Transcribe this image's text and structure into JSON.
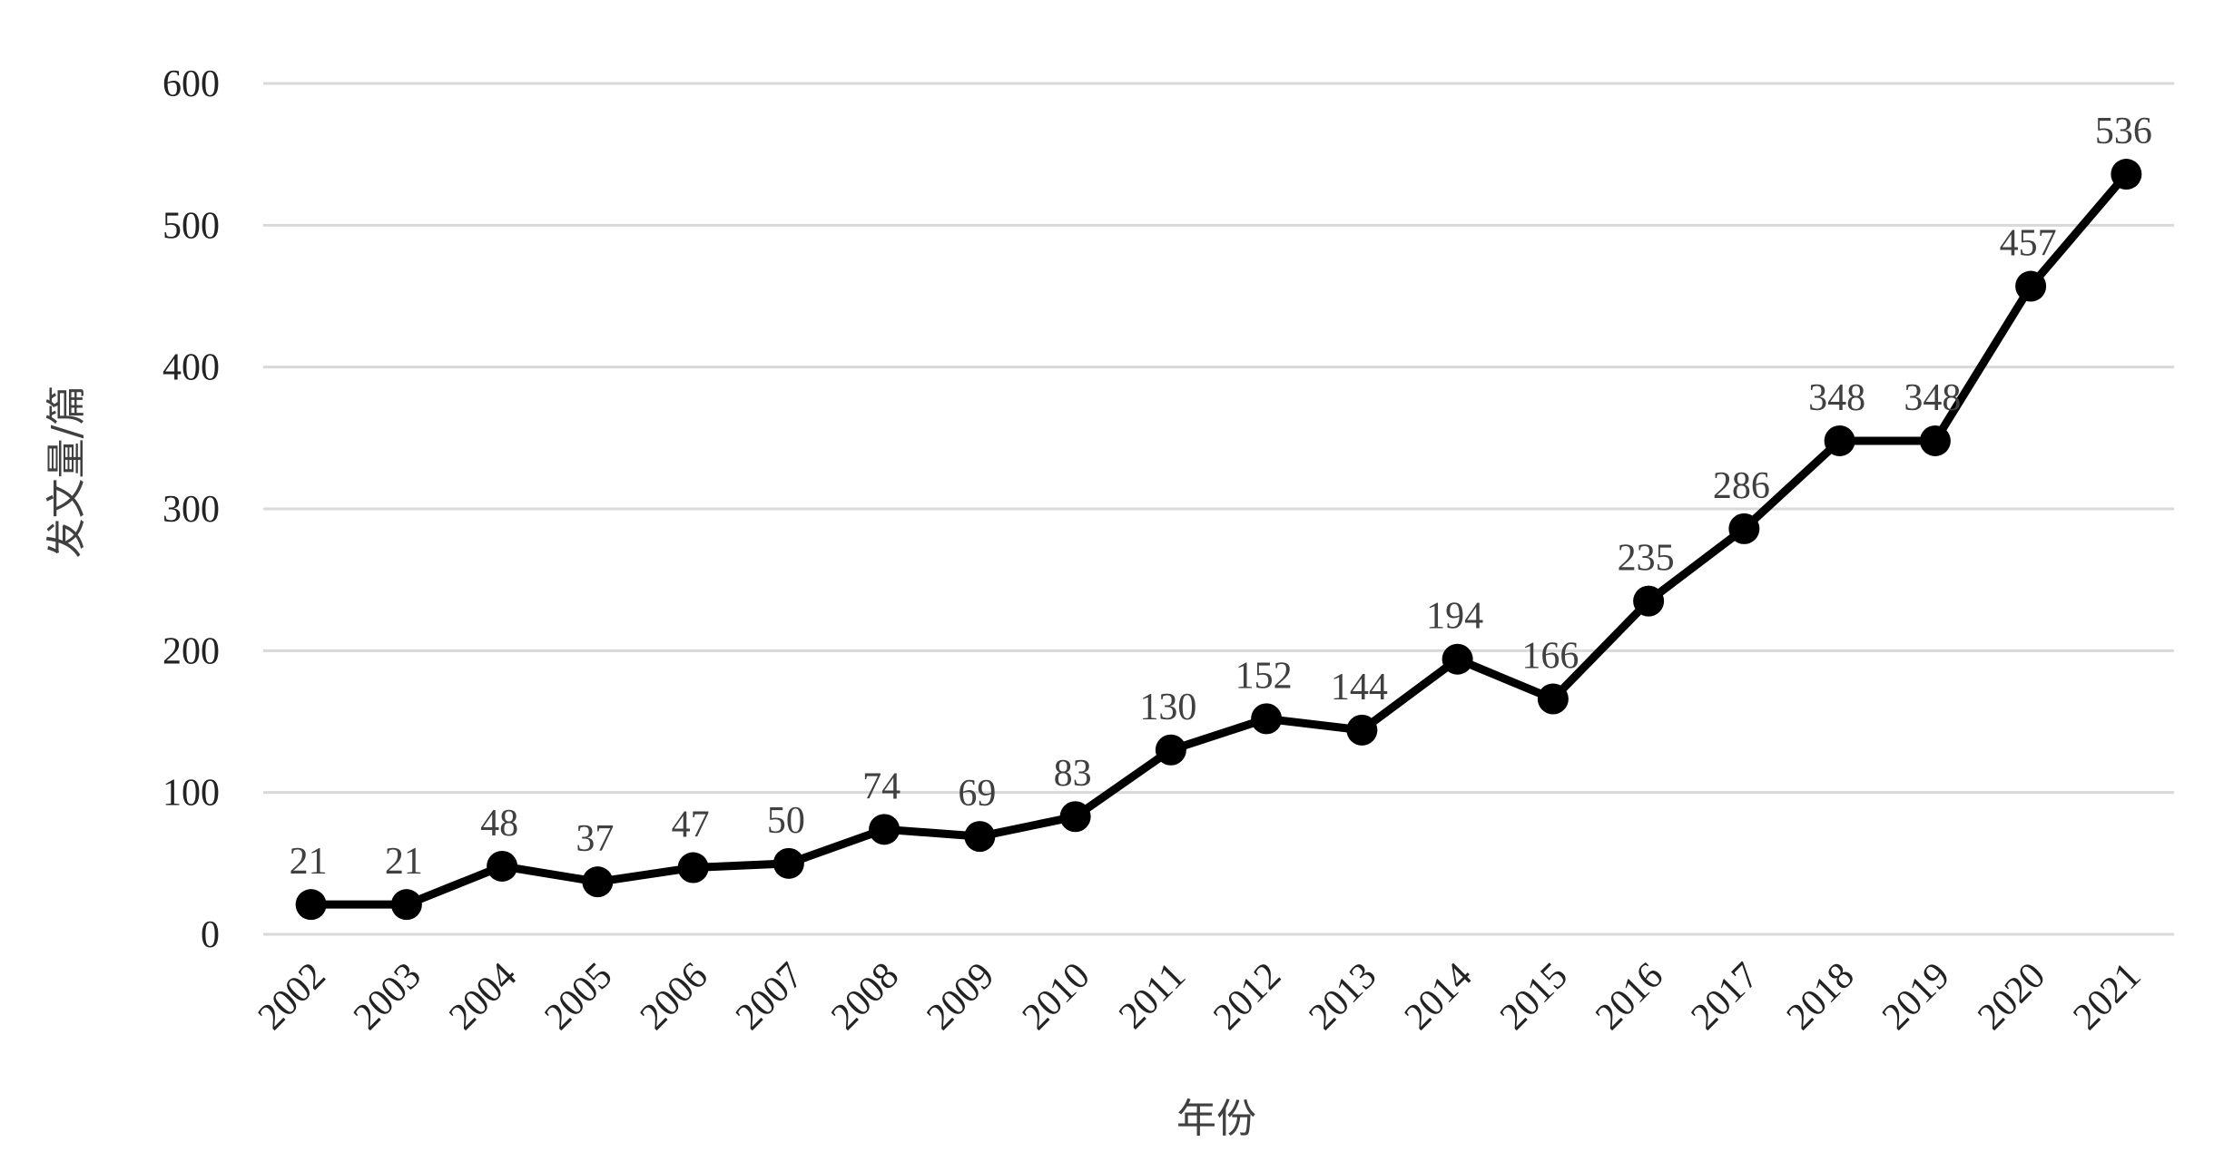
{
  "chart_data": {
    "type": "line",
    "title": "",
    "xlabel": "年份",
    "ylabel": "发文量/篇",
    "ylim": [
      0,
      600
    ],
    "yticks": [
      0,
      100,
      200,
      300,
      400,
      500,
      600
    ],
    "grid": true,
    "categories": [
      "2002",
      "2003",
      "2004",
      "2005",
      "2006",
      "2007",
      "2008",
      "2009",
      "2010",
      "2011",
      "2012",
      "2013",
      "2014",
      "2015",
      "2016",
      "2017",
      "2018",
      "2019",
      "2020",
      "2021"
    ],
    "series": [
      {
        "values": [
          21,
          21,
          48,
          37,
          47,
          50,
          74,
          69,
          83,
          130,
          152,
          144,
          194,
          166,
          235,
          286,
          348,
          348,
          457,
          536
        ],
        "color": "#000000",
        "data_labels": [
          "21",
          "21",
          "48",
          "37",
          "47",
          "50",
          "74",
          "69",
          "83",
          "130",
          "152",
          "144",
          "194",
          "166",
          "235",
          "286",
          "348",
          "348",
          "457",
          "536"
        ]
      }
    ]
  }
}
